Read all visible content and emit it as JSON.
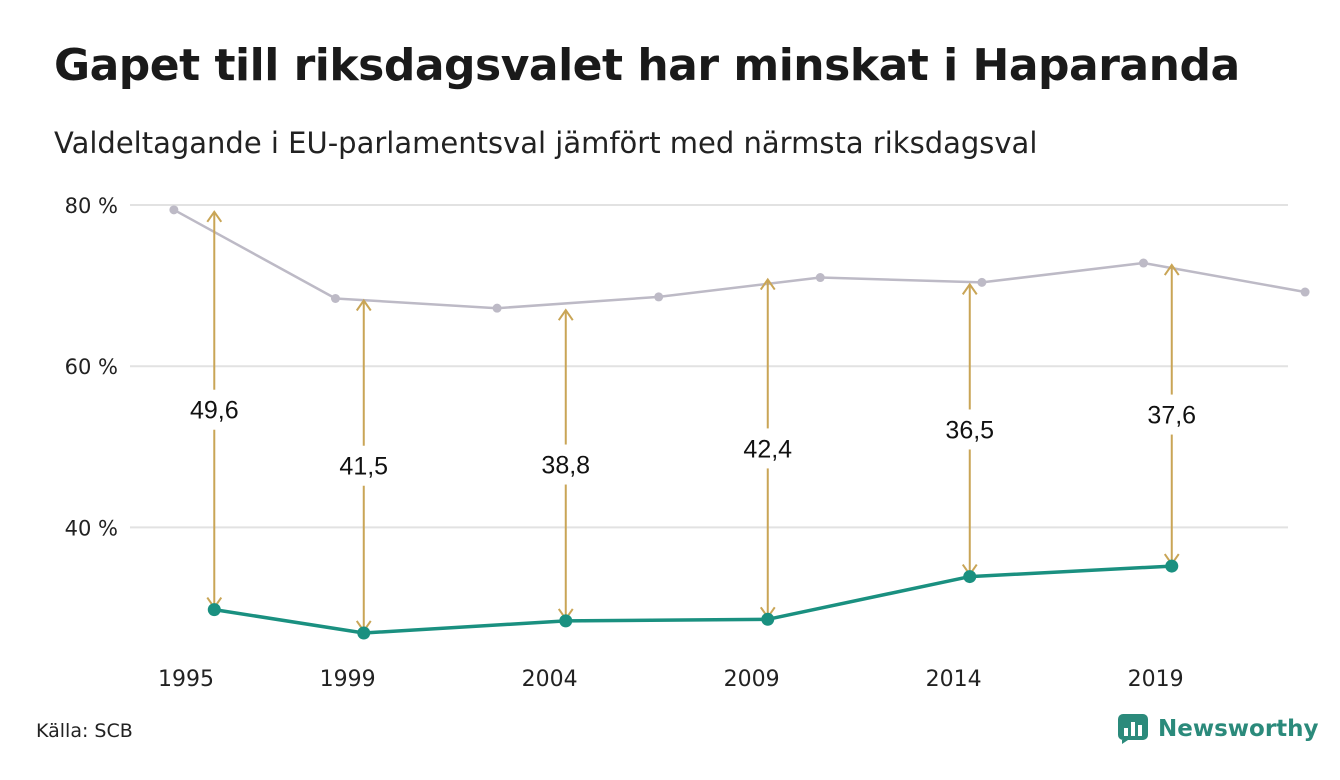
{
  "title": "Gapet till riksdagsvalet har minskat i Haparanda",
  "subtitle": "Valdeltagande i EU-parlamentsval jämfört med närmsta riksdagsval",
  "source": "Källa: SCB",
  "brand": {
    "name": "Newsworthy",
    "icon": "newsworthy-logo-icon"
  },
  "colors": {
    "riksdag": "#bdbac6",
    "eu": "#1a9080",
    "gap_arrow": "#c9a556",
    "grid": "#e2e2e2"
  },
  "chart_data": {
    "type": "line",
    "x_ticks": [
      "1995",
      "1999",
      "2004",
      "2009",
      "2014",
      "2019"
    ],
    "y_ticks": [
      "80 %",
      "60 %",
      "40 %"
    ],
    "ylim": [
      22,
      80
    ],
    "series": [
      {
        "key": "riksdag",
        "points": [
          {
            "x": 1994.7,
            "y": 79.4
          },
          {
            "x": 1998.7,
            "y": 68.4
          },
          {
            "x": 2002.7,
            "y": 67.2
          },
          {
            "x": 2006.7,
            "y": 68.6
          },
          {
            "x": 2010.7,
            "y": 71.0
          },
          {
            "x": 2014.7,
            "y": 70.4
          },
          {
            "x": 2018.7,
            "y": 72.8
          },
          {
            "x": 2022.7,
            "y": 69.2
          }
        ]
      },
      {
        "key": "eu",
        "points": [
          {
            "x": 1995.7,
            "y": 29.8
          },
          {
            "x": 1999.4,
            "y": 26.9
          },
          {
            "x": 2004.4,
            "y": 28.4
          },
          {
            "x": 2009.4,
            "y": 28.6
          },
          {
            "x": 2014.4,
            "y": 33.9
          },
          {
            "x": 2019.4,
            "y": 35.2
          }
        ]
      }
    ],
    "gaps": [
      {
        "x": 1995.7,
        "top": 79.4,
        "bottom": 29.8,
        "label": "49,6"
      },
      {
        "x": 1999.4,
        "top": 68.4,
        "bottom": 26.9,
        "label": "41,5"
      },
      {
        "x": 2004.4,
        "top": 67.2,
        "bottom": 28.4,
        "label": "38,8"
      },
      {
        "x": 2009.4,
        "top": 71.0,
        "bottom": 28.6,
        "label": "42,4"
      },
      {
        "x": 2014.4,
        "top": 70.4,
        "bottom": 33.9,
        "label": "36,5"
      },
      {
        "x": 2019.4,
        "top": 72.8,
        "bottom": 35.2,
        "label": "37,6"
      }
    ]
  }
}
